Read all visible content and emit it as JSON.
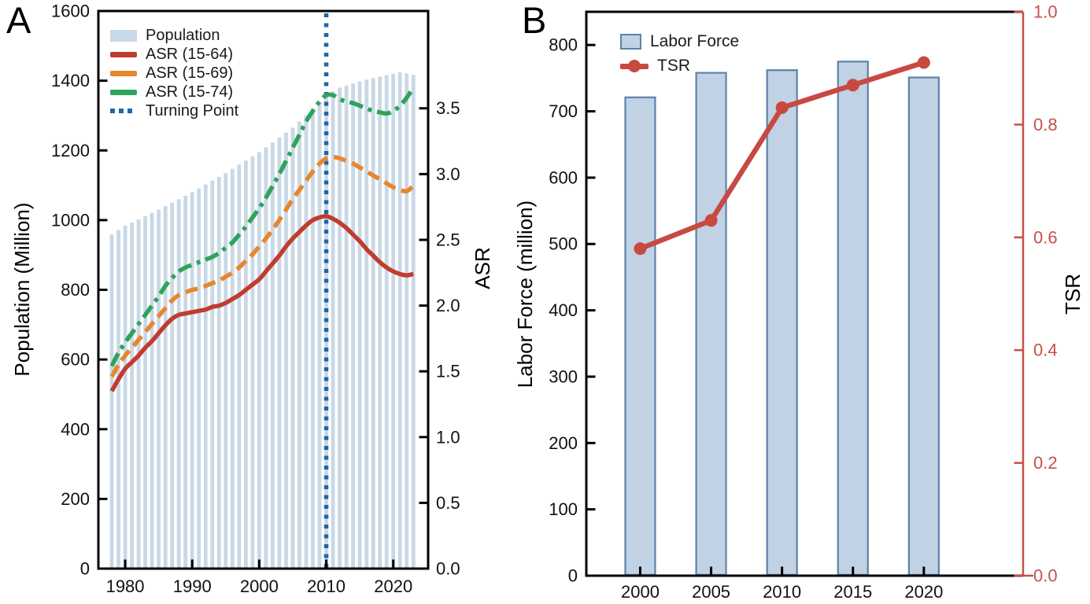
{
  "panels": {
    "a": {
      "letter": "A",
      "ylabel_left": "Population (Million)",
      "ylabel_right": "ASR",
      "legend": [
        "Population",
        "ASR (15-64)",
        "ASR (15-69)",
        "ASR (15-74)",
        "Turning Point"
      ]
    },
    "b": {
      "letter": "B",
      "ylabel_left": "Labor Force (million)",
      "ylabel_right": "TSR",
      "legend": [
        "Labor Force",
        "TSR"
      ]
    }
  },
  "colors": {
    "bar_fill_a": "#c9d8e6",
    "bar_fill_b": "#c0d2e4",
    "bar_edge_b": "#5e82aa",
    "asr_15_64": "#c13c30",
    "asr_15_69": "#e6872e",
    "asr_15_74": "#2fa35b",
    "turning_point": "#1e66a8",
    "tsr_line": "#c74941",
    "tsr_axis": "#c75049",
    "axis_black": "#000000"
  },
  "chart_data": [
    {
      "panel": "A",
      "type": "bar+line",
      "title": "",
      "xlabel": "",
      "ylabel_left": "Population (Million)",
      "ylabel_right": "ASR",
      "xlim": [
        1976.0,
        2025.2
      ],
      "xticks": [
        1980,
        1990,
        2000,
        2010,
        2020
      ],
      "ylim_left": [
        0,
        1600
      ],
      "yticks_left": [
        0,
        200,
        400,
        600,
        800,
        1000,
        1200,
        1400,
        1600
      ],
      "ylim_right": [
        0,
        4.24
      ],
      "yticks_right": [
        0.0,
        0.5,
        1.0,
        1.5,
        2.0,
        2.5,
        3.0,
        3.5
      ],
      "grid": false,
      "legend_position": "upper-left",
      "x": [
        1978,
        1979,
        1980,
        1981,
        1982,
        1983,
        1984,
        1985,
        1986,
        1987,
        1988,
        1989,
        1990,
        1991,
        1992,
        1993,
        1994,
        1995,
        1996,
        1997,
        1998,
        1999,
        2000,
        2001,
        2002,
        2003,
        2004,
        2005,
        2006,
        2007,
        2008,
        2009,
        2010,
        2011,
        2012,
        2013,
        2014,
        2015,
        2016,
        2017,
        2018,
        2019,
        2020,
        2021,
        2022,
        2023
      ],
      "bar_series": {
        "name": "Population",
        "axis": "left",
        "values": [
          959,
          971,
          984,
          993,
          1002,
          1011,
          1021,
          1030,
          1040,
          1050,
          1060,
          1070,
          1080,
          1091,
          1102,
          1113,
          1124,
          1135,
          1147,
          1159,
          1171,
          1183,
          1195,
          1209,
          1223,
          1237,
          1251,
          1265,
          1283,
          1301,
          1320,
          1340,
          1360,
          1370,
          1380,
          1386,
          1392,
          1398,
          1403,
          1408,
          1412,
          1416,
          1420,
          1424,
          1421,
          1417
        ]
      },
      "line_series": [
        {
          "name": "ASR (15-64)",
          "axis": "right",
          "style": "solid",
          "values": [
            1.35,
            1.44,
            1.52,
            1.57,
            1.62,
            1.68,
            1.73,
            1.79,
            1.85,
            1.9,
            1.93,
            1.94,
            1.95,
            1.96,
            1.97,
            1.99,
            2.0,
            2.02,
            2.05,
            2.08,
            2.12,
            2.16,
            2.2,
            2.26,
            2.32,
            2.38,
            2.45,
            2.51,
            2.56,
            2.61,
            2.65,
            2.67,
            2.68,
            2.66,
            2.63,
            2.59,
            2.54,
            2.49,
            2.43,
            2.38,
            2.33,
            2.29,
            2.26,
            2.24,
            2.23,
            2.24
          ]
        },
        {
          "name": "ASR (15-69)",
          "axis": "right",
          "style": "dashed",
          "values": [
            1.46,
            1.55,
            1.62,
            1.68,
            1.74,
            1.8,
            1.86,
            1.92,
            1.98,
            2.04,
            2.08,
            2.1,
            2.12,
            2.13,
            2.15,
            2.17,
            2.19,
            2.22,
            2.25,
            2.29,
            2.34,
            2.39,
            2.45,
            2.51,
            2.58,
            2.65,
            2.73,
            2.81,
            2.88,
            2.95,
            3.02,
            3.08,
            3.12,
            3.13,
            3.12,
            3.1,
            3.08,
            3.05,
            3.02,
            2.99,
            2.96,
            2.93,
            2.9,
            2.88,
            2.87,
            2.91
          ]
        },
        {
          "name": "ASR (15-74)",
          "axis": "right",
          "style": "dashdot",
          "values": [
            1.54,
            1.64,
            1.72,
            1.79,
            1.86,
            1.93,
            2.0,
            2.07,
            2.15,
            2.21,
            2.26,
            2.29,
            2.31,
            2.33,
            2.35,
            2.37,
            2.4,
            2.44,
            2.48,
            2.54,
            2.6,
            2.67,
            2.74,
            2.82,
            2.91,
            3.0,
            3.1,
            3.2,
            3.3,
            3.4,
            3.48,
            3.55,
            3.6,
            3.6,
            3.57,
            3.55,
            3.54,
            3.52,
            3.5,
            3.48,
            3.47,
            3.46,
            3.48,
            3.52,
            3.58,
            3.66
          ]
        }
      ],
      "vline": {
        "name": "Turning Point",
        "x": 2010,
        "style": "dotted"
      }
    },
    {
      "panel": "B",
      "type": "bar+line",
      "title": "",
      "xlabel": "",
      "ylabel_left": "Labor Force (million)",
      "ylabel_right": "TSR",
      "xlim": [
        1996.2,
        2027.0
      ],
      "xticks": [
        2000,
        2005,
        2010,
        2015,
        2020
      ],
      "ylim_left": [
        0,
        850
      ],
      "yticks_left": [
        0,
        100,
        200,
        300,
        400,
        500,
        600,
        700,
        800
      ],
      "ylim_right": [
        0,
        1.0
      ],
      "yticks_right": [
        0.0,
        0.2,
        0.4,
        0.6,
        0.8,
        1.0
      ],
      "grid": false,
      "legend_position": "upper-left",
      "categories": [
        2000,
        2005,
        2010,
        2015,
        2020
      ],
      "bar_series": {
        "name": "Labor Force",
        "axis": "left",
        "values": [
          721,
          758,
          762,
          775,
          751
        ]
      },
      "line_series": [
        {
          "name": "TSR",
          "axis": "right",
          "style": "solid",
          "marker": "circle",
          "values": [
            0.58,
            0.63,
            0.83,
            0.87,
            0.91
          ]
        }
      ]
    }
  ]
}
